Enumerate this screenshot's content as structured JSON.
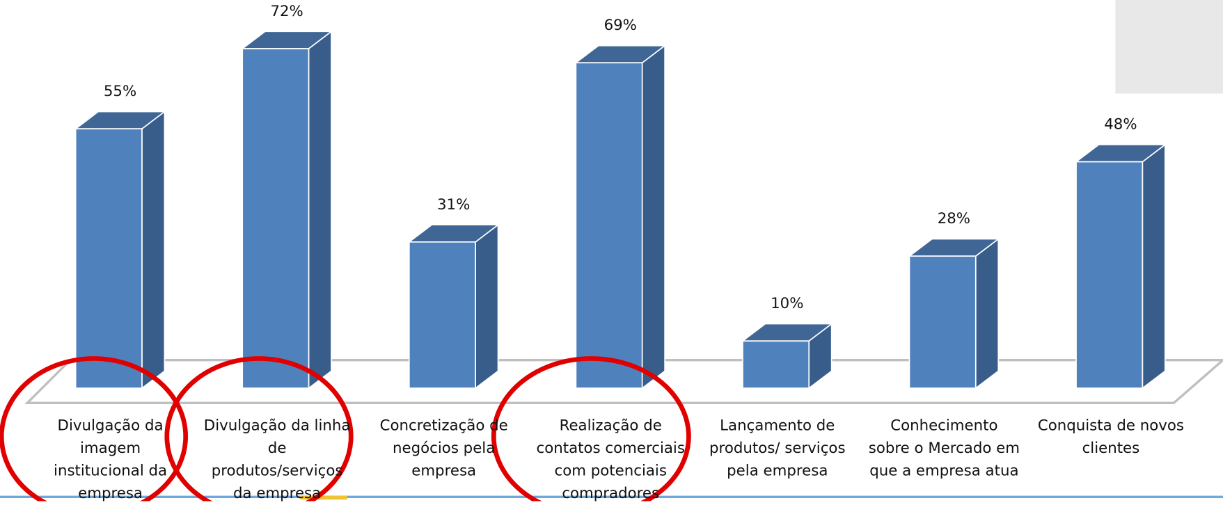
{
  "chart_data": {
    "type": "bar3d",
    "categories": [
      "Divulgação da imagem institucional da empresa",
      "Divulgação da linha de produtos/serviços da empresa",
      "Concretização de negócios pela empresa",
      "Realização de contatos comerciais com potenciais compradores",
      "Lançamento de produtos/ serviços pela empresa",
      "Conhecimento sobre o Mercado em que a empresa atua",
      "Conquista de novos clientes"
    ],
    "values": [
      55,
      72,
      31,
      69,
      10,
      28,
      48
    ],
    "value_labels": [
      "55%",
      "72%",
      "31%",
      "69%",
      "10%",
      "28%",
      "48%"
    ],
    "color": "#4f81bd"
  }
}
